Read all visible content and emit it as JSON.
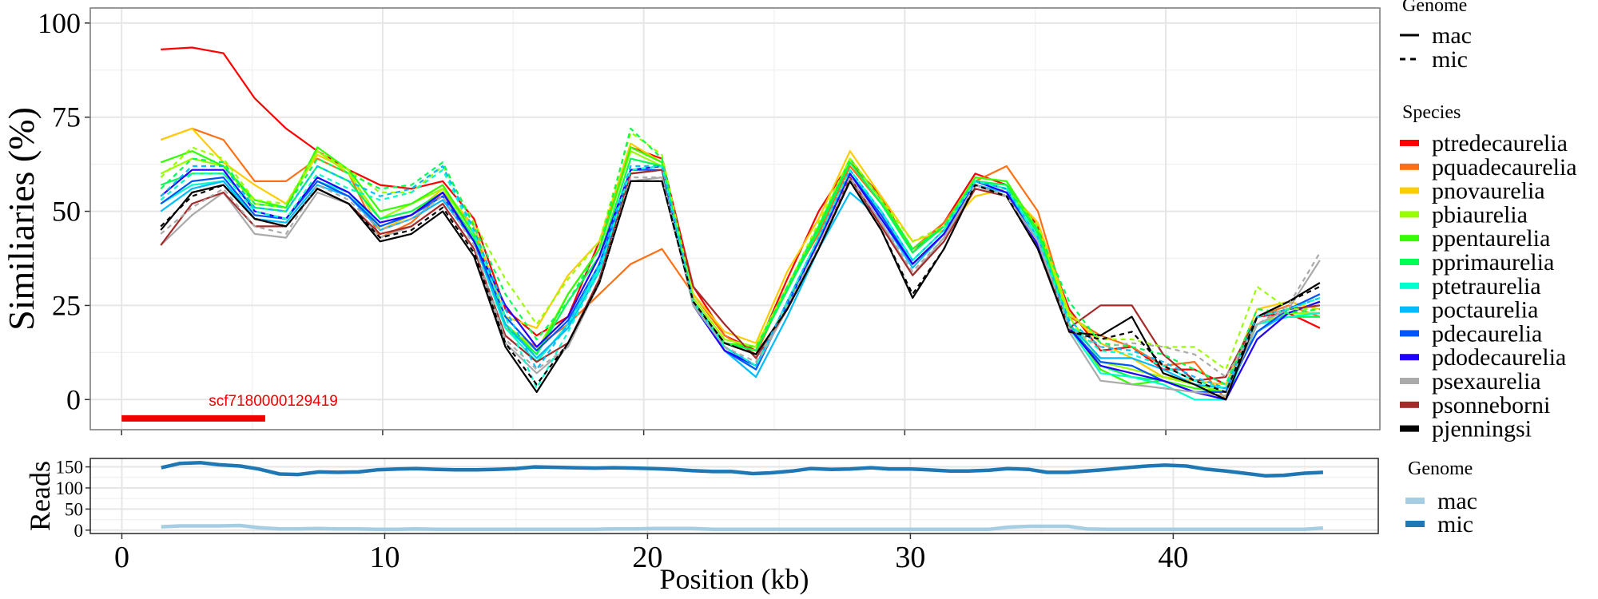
{
  "chart_data": [
    {
      "type": "line",
      "panel": "similarity",
      "title": "",
      "ylabel": "Similiaries (%)",
      "xlabel": "",
      "ylim": [
        -8,
        104
      ],
      "yticks": [
        0,
        25,
        50,
        75,
        100
      ],
      "xlim": [
        -1.2,
        48.2
      ],
      "xticks": [
        0,
        10,
        20,
        30,
        40
      ],
      "xticklabels_shown": false,
      "grid": true,
      "annotation": {
        "text": "scf7180000129419",
        "color": "#ee0000",
        "bar_start_kb": 0,
        "bar_end_kb": 5.5,
        "y": -5
      },
      "x": [
        1.5,
        2.7,
        3.9,
        5.1,
        6.3,
        7.5,
        8.7,
        9.9,
        11.1,
        12.3,
        13.5,
        14.7,
        15.9,
        17.1,
        18.3,
        19.5,
        20.7,
        21.9,
        23.1,
        24.3,
        25.5,
        26.7,
        27.9,
        29.1,
        30.3,
        31.5,
        32.7,
        33.9,
        35.1,
        36.3,
        37.5,
        38.7,
        39.9,
        41.1,
        42.3,
        43.5,
        44.7,
        45.9
      ],
      "legend_genome": {
        "title": "Genome",
        "entries": [
          {
            "label": "mac",
            "style": "solid"
          },
          {
            "label": "mic",
            "style": "dashed"
          }
        ]
      },
      "legend_species": {
        "title": "Species"
      },
      "series": [
        {
          "name": "ptredecaurelia",
          "genome": "mac",
          "color": "#ff0000",
          "values": [
            93,
            93.5,
            92,
            80,
            72,
            66,
            61,
            57,
            56,
            58,
            48,
            24,
            17,
            22,
            42,
            67,
            64,
            30,
            17,
            13,
            32,
            50,
            63,
            54,
            39,
            47,
            60,
            57,
            46,
            24,
            13,
            14,
            8,
            8,
            4,
            22,
            23,
            19
          ]
        },
        {
          "name": "pquadecaurelia",
          "genome": "mac",
          "color": "#ff7014",
          "values": [
            69,
            72,
            69,
            58,
            58,
            64,
            60,
            43,
            47,
            55,
            46,
            19,
            14,
            20,
            28,
            36,
            40,
            28,
            17,
            12,
            30,
            44,
            62,
            52,
            40,
            47,
            58,
            62,
            50,
            22,
            17,
            14,
            9,
            10,
            0,
            22,
            25,
            22
          ]
        },
        {
          "name": "pnovaurelia",
          "genome": "mac",
          "color": "#ffcc00",
          "values": [
            69,
            72,
            63,
            57,
            52,
            65,
            61,
            45,
            49,
            56,
            46,
            22,
            19,
            33,
            42,
            68,
            63,
            28,
            18,
            15,
            34,
            48,
            66,
            54,
            42,
            45,
            54,
            56,
            47,
            23,
            15,
            11,
            6,
            5,
            4,
            24,
            26,
            24
          ]
        },
        {
          "name": "pbiaurelia",
          "genome": "mac",
          "color": "#99ff00",
          "values": [
            60,
            64,
            62,
            52,
            51,
            66,
            60,
            48,
            52,
            56,
            44,
            20,
            13,
            28,
            40,
            66,
            62,
            27,
            16,
            14,
            30,
            46,
            64,
            53,
            40,
            46,
            58,
            57,
            45,
            22,
            10,
            8,
            6,
            4,
            2,
            20,
            23,
            23
          ]
        },
        {
          "name": "ppentaurelia",
          "genome": "mac",
          "color": "#33ff00",
          "values": [
            63,
            66,
            62,
            53,
            51,
            67,
            61,
            50,
            52,
            57,
            44,
            20,
            12,
            28,
            40,
            67,
            63,
            26,
            15,
            14,
            30,
            46,
            64,
            53,
            40,
            46,
            59,
            58,
            45,
            20,
            8,
            4,
            5,
            3,
            2,
            20,
            22,
            22
          ]
        },
        {
          "name": "pprimaurelia",
          "genome": "mac",
          "color": "#00ff55",
          "values": [
            57,
            60,
            60,
            51,
            50,
            62,
            58,
            48,
            50,
            55,
            43,
            19,
            12,
            26,
            38,
            64,
            62,
            26,
            15,
            13,
            29,
            45,
            63,
            52,
            39,
            46,
            58,
            57,
            44,
            20,
            9,
            6,
            5,
            2,
            2,
            20,
            22,
            22
          ]
        },
        {
          "name": "ptetraurelia",
          "genome": "mac",
          "color": "#00ffcc",
          "values": [
            52,
            57,
            58,
            49,
            48,
            58,
            55,
            46,
            49,
            54,
            42,
            19,
            10,
            20,
            35,
            60,
            61,
            26,
            14,
            8,
            26,
            43,
            60,
            50,
            37,
            45,
            58,
            56,
            43,
            19,
            7,
            6,
            4,
            0,
            0,
            20,
            22,
            23
          ]
        },
        {
          "name": "poctaurelia",
          "genome": "mac",
          "color": "#00bbff",
          "values": [
            50,
            56,
            58,
            48,
            47,
            57,
            54,
            45,
            48,
            53,
            42,
            20,
            11,
            19,
            34,
            60,
            61,
            26,
            13,
            6,
            22,
            40,
            55,
            48,
            35,
            44,
            57,
            55,
            42,
            20,
            11,
            11,
            8,
            4,
            3,
            18,
            23,
            26
          ]
        },
        {
          "name": "pdecaurelia",
          "genome": "mac",
          "color": "#0055ff",
          "values": [
            52,
            58,
            59,
            49,
            48,
            58,
            54,
            46,
            49,
            54,
            42,
            22,
            13,
            21,
            36,
            61,
            61,
            25,
            13,
            8,
            25,
            42,
            60,
            49,
            36,
            44,
            58,
            56,
            41,
            19,
            10,
            9,
            5,
            2,
            2,
            18,
            24,
            28
          ]
        },
        {
          "name": "pdodecaurelia",
          "genome": "mac",
          "color": "#2200ff",
          "values": [
            54,
            61,
            61,
            50,
            48,
            59,
            55,
            47,
            49,
            55,
            42,
            25,
            14,
            22,
            38,
            61,
            62,
            25,
            13,
            9,
            26,
            42,
            60,
            48,
            36,
            44,
            58,
            55,
            41,
            19,
            9,
            7,
            5,
            2,
            0,
            16,
            23,
            26
          ]
        },
        {
          "name": "psexaurelia",
          "genome": "mac",
          "color": "#aaaaaa",
          "values": [
            41,
            49,
            55,
            44,
            43,
            55,
            52,
            43,
            46,
            52,
            40,
            15,
            7,
            14,
            31,
            58,
            59,
            25,
            14,
            9,
            24,
            40,
            59,
            47,
            33,
            43,
            57,
            54,
            42,
            18,
            5,
            4,
            3,
            2,
            1,
            20,
            24,
            37
          ]
        },
        {
          "name": "psonneborni",
          "genome": "mac",
          "color": "#a52a2a",
          "values": [
            41,
            52,
            55,
            46,
            46,
            56,
            52,
            44,
            46,
            52,
            40,
            17,
            10,
            15,
            32,
            60,
            61,
            30,
            20,
            11,
            24,
            40,
            59,
            46,
            33,
            42,
            56,
            54,
            40,
            19,
            25,
            25,
            12,
            5,
            6,
            22,
            24,
            25
          ]
        },
        {
          "name": "pjenningsi",
          "genome": "mac",
          "color": "#000000",
          "values": [
            45,
            55,
            57,
            48,
            46,
            56,
            52,
            42,
            44,
            50,
            38,
            14,
            2,
            15,
            31,
            58,
            58,
            26,
            15,
            12,
            24,
            40,
            58,
            45,
            27,
            40,
            57,
            54,
            40,
            18,
            17,
            22,
            7,
            4,
            0,
            22,
            26,
            31
          ]
        },
        {
          "name": "pbiaurelia",
          "genome": "mic",
          "color": "#99ff00",
          "values": [
            59,
            67,
            64,
            53,
            52,
            66,
            61,
            55,
            55,
            62,
            47,
            32,
            20,
            32,
            42,
            71,
            65,
            27,
            16,
            14,
            30,
            47,
            64,
            53,
            42,
            46,
            58,
            56,
            46,
            23,
            16,
            16,
            14,
            14,
            8,
            30,
            24,
            24
          ]
        },
        {
          "name": "pprimaurelia",
          "genome": "mic",
          "color": "#00ff55",
          "values": [
            56,
            64,
            63,
            52,
            51,
            64,
            60,
            56,
            57,
            63,
            46,
            28,
            16,
            26,
            40,
            72,
            64,
            26,
            15,
            13,
            30,
            46,
            63,
            52,
            40,
            46,
            58,
            56,
            45,
            26,
            15,
            14,
            12,
            8,
            4,
            24,
            23,
            24
          ]
        },
        {
          "name": "poctaurelia",
          "genome": "mic",
          "color": "#00bbff",
          "values": [
            54,
            62,
            62,
            51,
            50,
            62,
            58,
            54,
            56,
            62,
            45,
            24,
            8,
            20,
            36,
            62,
            62,
            26,
            14,
            9,
            26,
            43,
            61,
            50,
            37,
            45,
            58,
            56,
            43,
            21,
            14,
            13,
            10,
            6,
            3,
            22,
            24,
            27
          ]
        },
        {
          "name": "ptetraurelia",
          "genome": "mic",
          "color": "#00ffcc",
          "values": [
            53,
            60,
            60,
            50,
            48,
            60,
            56,
            53,
            55,
            61,
            44,
            22,
            3,
            18,
            34,
            61,
            62,
            26,
            14,
            9,
            26,
            43,
            61,
            50,
            37,
            45,
            58,
            56,
            43,
            20,
            13,
            12,
            9,
            5,
            3,
            22,
            24,
            27
          ]
        },
        {
          "name": "psexaurelia",
          "genome": "mic",
          "color": "#aaaaaa",
          "values": [
            44,
            51,
            56,
            46,
            44,
            57,
            53,
            45,
            48,
            54,
            41,
            16,
            8,
            14,
            31,
            59,
            59,
            25,
            14,
            10,
            25,
            41,
            59,
            47,
            34,
            43,
            57,
            54,
            42,
            19,
            14,
            15,
            14,
            12,
            6,
            20,
            25,
            39
          ]
        },
        {
          "name": "pjenningsi",
          "genome": "mic",
          "color": "#000000",
          "values": [
            46,
            54,
            57,
            48,
            46,
            56,
            52,
            43,
            45,
            51,
            39,
            15,
            4,
            15,
            31,
            58,
            58,
            26,
            15,
            12,
            24,
            40,
            58,
            45,
            28,
            40,
            57,
            54,
            40,
            18,
            16,
            18,
            9,
            5,
            2,
            22,
            26,
            30
          ]
        }
      ]
    },
    {
      "type": "line",
      "panel": "reads",
      "ylabel": "Reads",
      "xlabel": "Position (kb)",
      "ylim": [
        -8,
        170
      ],
      "yticks": [
        0,
        50,
        100,
        150
      ],
      "xlim": [
        -1.2,
        47.8
      ],
      "xticks": [
        0,
        10,
        20,
        30,
        40
      ],
      "grid": true,
      "legend": {
        "title": "Genome",
        "entries": [
          {
            "label": "mac",
            "color": "#a6cee3"
          },
          {
            "label": "mic",
            "color": "#1f78b4"
          }
        ]
      },
      "x": [
        1.5,
        2.2,
        3.0,
        3.7,
        4.5,
        5.2,
        6.0,
        6.7,
        7.5,
        8.2,
        9.0,
        9.7,
        10.5,
        11.2,
        12.0,
        12.7,
        13.5,
        14.2,
        15.0,
        15.7,
        16.5,
        17.2,
        18.0,
        18.7,
        19.5,
        20.2,
        21.0,
        21.7,
        22.5,
        23.2,
        24.0,
        24.7,
        25.5,
        26.2,
        27.0,
        27.7,
        28.5,
        29.2,
        30.0,
        30.7,
        31.5,
        32.2,
        33.0,
        33.7,
        34.5,
        35.2,
        36.0,
        36.7,
        37.5,
        38.2,
        39.0,
        39.7,
        40.5,
        41.2,
        42.0,
        42.7,
        43.5,
        44.2,
        45.0,
        45.7
      ],
      "series": [
        {
          "name": "mac",
          "color": "#a6cee3",
          "values": [
            8,
            10,
            10,
            10,
            11,
            6,
            3,
            3,
            4,
            3,
            3,
            2,
            2,
            3,
            2,
            2,
            2,
            2,
            2,
            2,
            2,
            2,
            2,
            3,
            3,
            4,
            4,
            4,
            2,
            2,
            2,
            2,
            2,
            2,
            2,
            2,
            2,
            2,
            2,
            2,
            2,
            2,
            2,
            7,
            9,
            9,
            9,
            3,
            2,
            2,
            2,
            2,
            2,
            2,
            2,
            2,
            2,
            2,
            2,
            5
          ]
        },
        {
          "name": "mic",
          "color": "#1f78b4",
          "values": [
            148,
            158,
            160,
            155,
            152,
            145,
            133,
            132,
            138,
            137,
            138,
            143,
            145,
            146,
            144,
            143,
            143,
            144,
            146,
            150,
            149,
            148,
            147,
            148,
            147,
            146,
            144,
            141,
            139,
            139,
            134,
            136,
            140,
            146,
            144,
            145,
            148,
            145,
            145,
            143,
            140,
            140,
            142,
            146,
            144,
            137,
            137,
            140,
            144,
            148,
            152,
            154,
            152,
            145,
            140,
            135,
            129,
            130,
            135,
            137
          ]
        }
      ]
    }
  ]
}
